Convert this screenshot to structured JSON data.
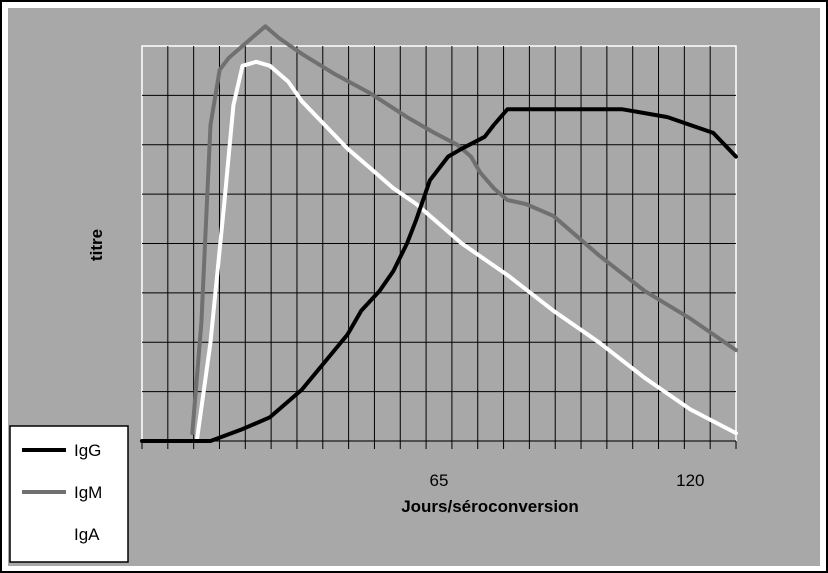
{
  "chart_data": {
    "type": "line",
    "xlabel": "Jours/séroconversion",
    "ylabel": "titre",
    "x_ticks": [
      65,
      120
    ],
    "x_tick_labels": [
      "65",
      "120"
    ],
    "xlim": [
      0,
      130
    ],
    "ylim": [
      0,
      10
    ],
    "grid": true,
    "legend_position": "bottom-left",
    "series": [
      {
        "name": "IgG",
        "color": "#000000",
        "x": [
          0,
          7,
          15,
          22,
          28,
          35,
          40,
          45,
          48,
          52,
          55,
          58,
          60,
          63,
          67,
          70,
          75,
          77,
          80,
          84,
          90,
          100,
          105,
          110,
          115,
          120,
          125,
          130
        ],
        "y": [
          0,
          0,
          0,
          0.3,
          0.6,
          1.3,
          2.0,
          2.7,
          3.3,
          3.8,
          4.3,
          5.0,
          5.6,
          6.6,
          7.2,
          7.4,
          7.7,
          8.0,
          8.4,
          8.4,
          8.4,
          8.4,
          8.4,
          8.3,
          8.2,
          8.0,
          7.8,
          7.2
        ]
      },
      {
        "name": "IgM",
        "color": "#707070",
        "x": [
          11,
          13,
          15,
          17,
          19,
          22,
          25,
          27,
          30,
          35,
          42,
          50,
          58,
          64,
          69,
          72,
          74,
          77,
          80,
          84,
          90,
          100,
          110,
          120,
          125,
          130
        ],
        "y": [
          0.2,
          3.0,
          8.0,
          9.4,
          9.7,
          10.0,
          10.3,
          10.5,
          10.2,
          9.8,
          9.3,
          8.8,
          8.2,
          7.8,
          7.5,
          7.2,
          6.8,
          6.4,
          6.1,
          6.0,
          5.7,
          4.7,
          3.8,
          3.1,
          2.7,
          2.3
        ]
      },
      {
        "name": "IgA",
        "color": "#ffffff",
        "x": [
          12,
          15,
          18,
          20,
          22,
          25,
          28,
          32,
          35,
          40,
          45,
          50,
          55,
          60,
          65,
          70,
          80,
          90,
          100,
          110,
          120,
          130
        ],
        "y": [
          0,
          2.5,
          6.0,
          8.5,
          9.5,
          9.6,
          9.5,
          9.1,
          8.6,
          8.0,
          7.4,
          6.9,
          6.4,
          6.0,
          5.5,
          5.0,
          4.2,
          3.3,
          2.5,
          1.6,
          0.8,
          0.2
        ]
      }
    ]
  }
}
